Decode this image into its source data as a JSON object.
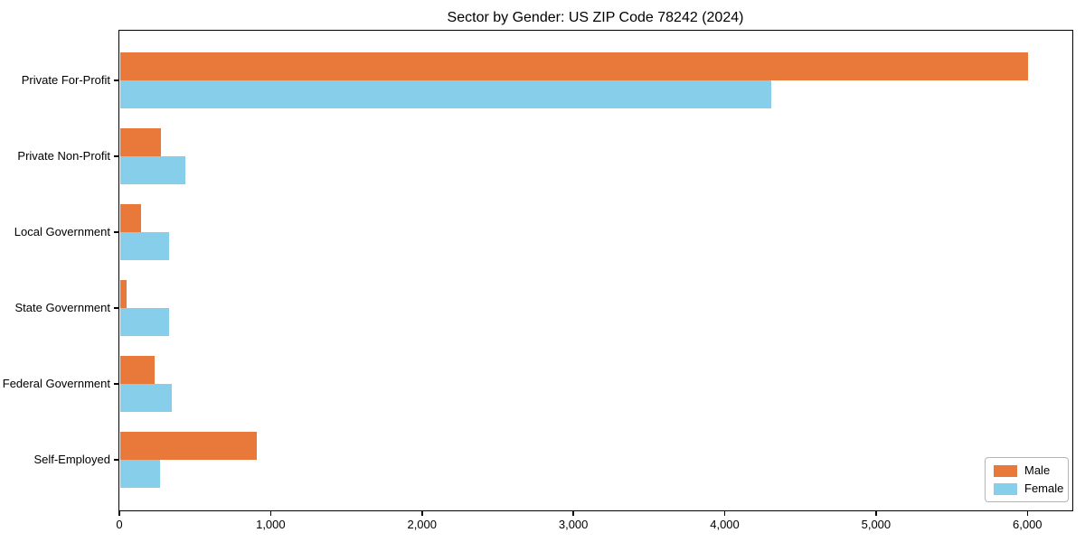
{
  "chart_data": {
    "type": "bar",
    "orientation": "horizontal",
    "title": "Sector by Gender: US ZIP Code 78242 (2024)",
    "categories": [
      "Private For-Profit",
      "Private Non-Profit",
      "Local Government",
      "State Government",
      "Federal Government",
      "Self-Employed"
    ],
    "series": [
      {
        "name": "Male",
        "color": "#e8793b",
        "values": [
          6000,
          270,
          140,
          40,
          230,
          900
        ]
      },
      {
        "name": "Female",
        "color": "#87ceeb",
        "values": [
          4300,
          430,
          320,
          320,
          340,
          260
        ]
      }
    ],
    "xlabel": "",
    "ylabel": "",
    "xlim": [
      0,
      6300
    ],
    "xticks": [
      0,
      1000,
      2000,
      3000,
      4000,
      5000,
      6000
    ],
    "xtick_labels": [
      "0",
      "1,000",
      "2,000",
      "3,000",
      "4,000",
      "5,000",
      "6,000"
    ],
    "grid": false,
    "legend": {
      "position": "lower right"
    },
    "colors": {
      "spine": "#000000",
      "background": "#ffffff"
    }
  }
}
